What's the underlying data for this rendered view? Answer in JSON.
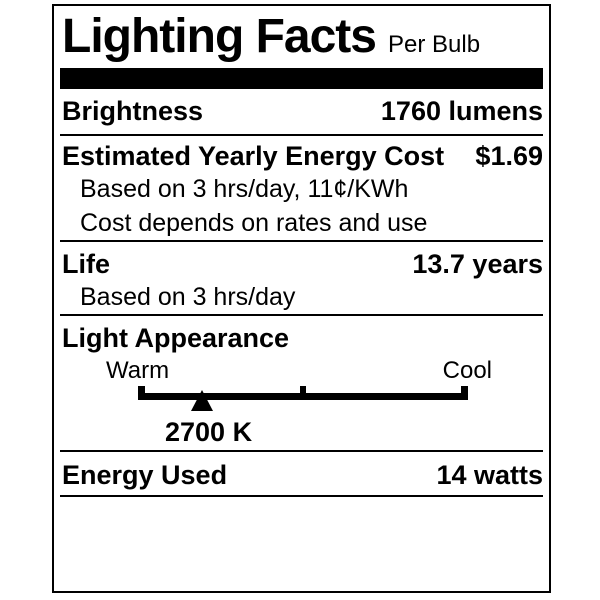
{
  "label": {
    "title": "Lighting Facts",
    "subtitle": "Per Bulb",
    "brightness": {
      "label": "Brightness",
      "value": "1760 lumens"
    },
    "energy_cost": {
      "label": "Estimated Yearly Energy Cost",
      "value": "$1.69",
      "notes": [
        "Based on 3 hrs/day, 11¢/KWh",
        "Cost depends on rates and use"
      ]
    },
    "life": {
      "label": "Life",
      "value": "13.7 years",
      "note": "Based on 3 hrs/day"
    },
    "light_appearance": {
      "label": "Light Appearance",
      "warm_label": "Warm",
      "cool_label": "Cool",
      "marker_value": "2700 K"
    },
    "energy_used": {
      "label": "Energy Used",
      "value": "14 watts"
    },
    "colors": {
      "ink": "#000000",
      "background": "#ffffff"
    }
  }
}
